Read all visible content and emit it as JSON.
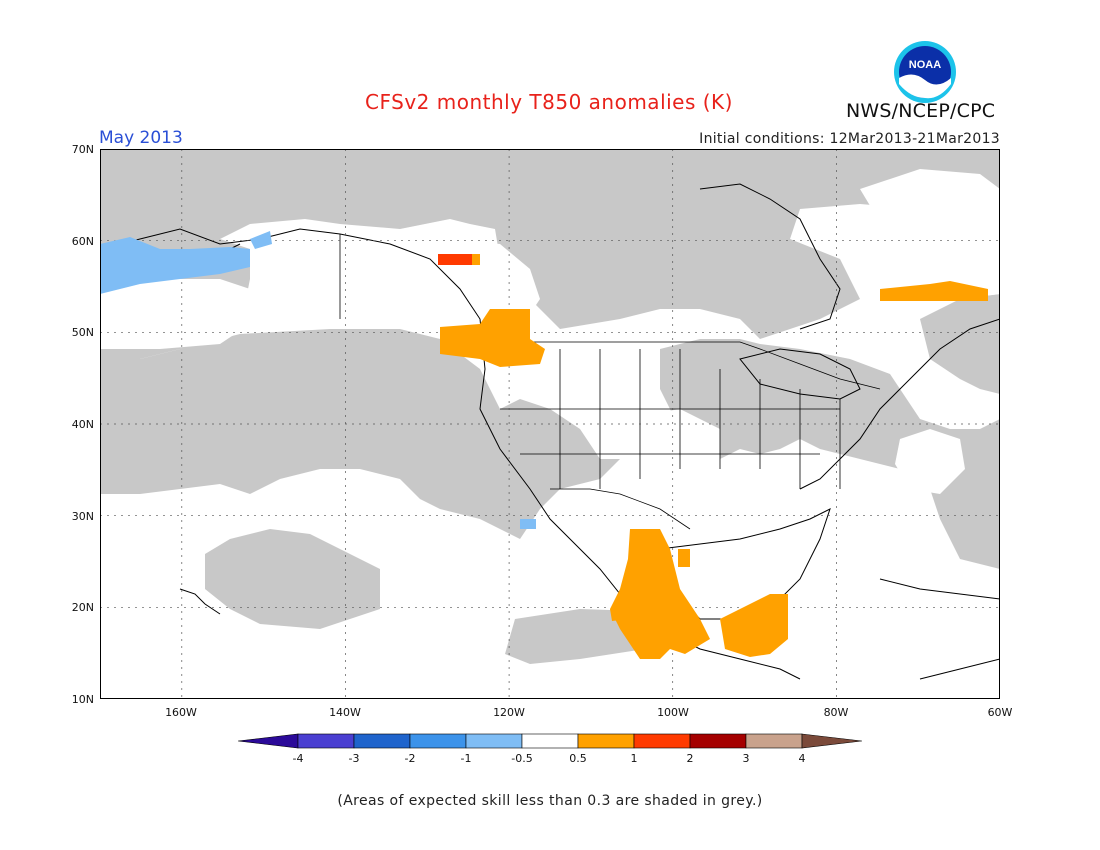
{
  "title": "CFSv2 monthly T850 anomalies (K)",
  "period_label": "May 2013",
  "initial_conditions": "Initial conditions: 12Mar2013-21Mar2013",
  "org": "NWS/NCEP/CPC",
  "logo_text": "NOAA",
  "map": {
    "lon_range": [
      -170,
      -60
    ],
    "lat_range": [
      10,
      70
    ],
    "lat_ticks": [
      "70N",
      "60N",
      "50N",
      "40N",
      "30N",
      "20N",
      "10N"
    ],
    "lon_ticks": [
      "160W",
      "140W",
      "120W",
      "100W",
      "80W",
      "60W"
    ],
    "grid": "dotted"
  },
  "legend": {
    "labels": [
      "-4",
      "-3",
      "-2",
      "-1",
      "-0.5",
      "0.5",
      "1",
      "2",
      "3",
      "4"
    ],
    "colors": [
      "#2b0a99",
      "#4a3fd1",
      "#1f64cc",
      "#3c93ea",
      "#7fbdf5",
      "#ffffff",
      "#ffa100",
      "#ff3a00",
      "#a50000",
      "#c9a28c",
      "#7b4a3a"
    ],
    "grey_color": "#c8c8c8"
  },
  "footnote": "(Areas of expected skill less than 0.3 are shaded in grey.)"
}
